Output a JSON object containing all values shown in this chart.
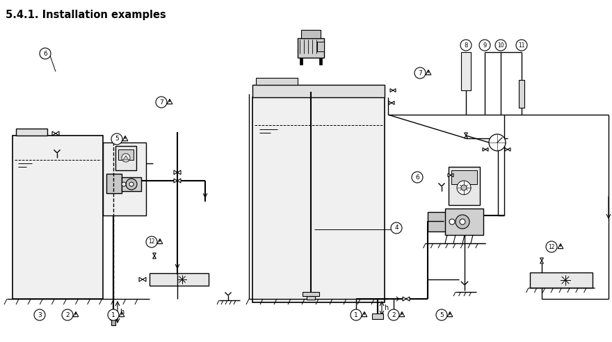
{
  "title": "5.4.1. Installation examples",
  "bg_color": "#ffffff",
  "lc": "#000000",
  "lw": 1.0,
  "lw2": 1.5
}
